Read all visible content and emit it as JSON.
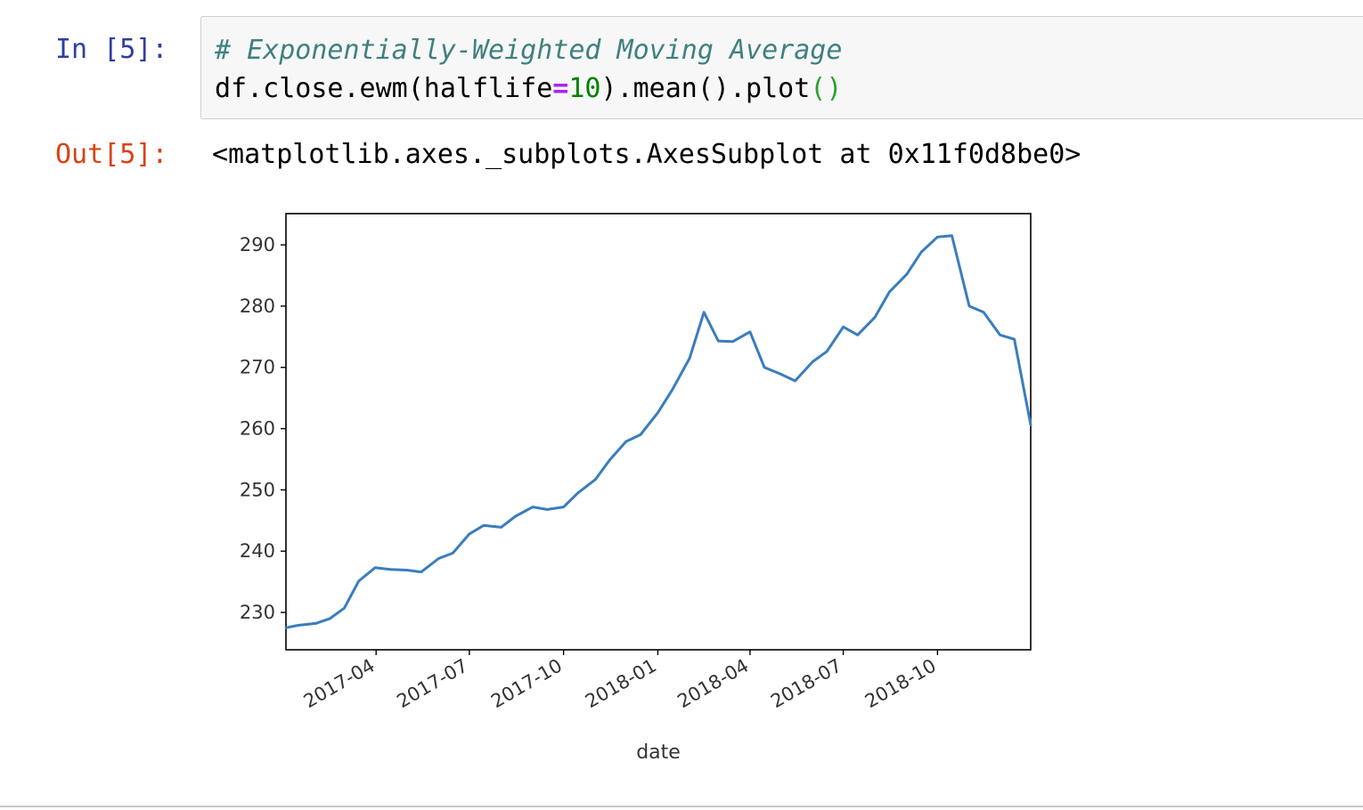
{
  "cell": {
    "in_prompt": "In [5]:",
    "out_prompt": "Out[5]:",
    "code": {
      "comment": "# Exponentially-Weighted Moving Average",
      "line2_a": "df.close.ewm(halflife",
      "line2_op": "=",
      "line2_num": "10",
      "line2_b": ").mean().plot",
      "line2_parens": "()"
    },
    "output_text": "<matplotlib.axes._subplots.AxesSubplot at 0x11f0d8be0>"
  },
  "colors": {
    "line": "#3a7dbd",
    "in_prompt": "#303f9f",
    "out_prompt": "#d84315",
    "comment": "#408080",
    "keyword_op": "#aa22ff",
    "number": "#008000"
  },
  "chart_data": {
    "type": "line",
    "xlabel": "date",
    "ylabel": "",
    "title": "",
    "x_ticks": [
      "2017-04",
      "2017-07",
      "2017-10",
      "2018-01",
      "2018-04",
      "2018-07",
      "2018-10"
    ],
    "y_ticks": [
      230,
      240,
      250,
      260,
      270,
      280,
      290
    ],
    "xlim": [
      "2017-01-03",
      "2018-12-31"
    ],
    "ylim": [
      223.9,
      295.1
    ],
    "grid": false,
    "series": [
      {
        "x": [
          "2017-01-03",
          "2017-01-15",
          "2017-02-01",
          "2017-02-15",
          "2017-03-01",
          "2017-03-15",
          "2017-03-31",
          "2017-04-15",
          "2017-05-01",
          "2017-05-15",
          "2017-06-01",
          "2017-06-15",
          "2017-07-01",
          "2017-07-15",
          "2017-08-01",
          "2017-08-15",
          "2017-09-01",
          "2017-09-15",
          "2017-10-01",
          "2017-10-15",
          "2017-11-01",
          "2017-11-15",
          "2017-12-01",
          "2017-12-15",
          "2018-01-01",
          "2018-01-15",
          "2018-02-01",
          "2018-02-15",
          "2018-03-01",
          "2018-03-15",
          "2018-04-01",
          "2018-04-15",
          "2018-05-01",
          "2018-05-15",
          "2018-06-01",
          "2018-06-15",
          "2018-07-01",
          "2018-07-15",
          "2018-08-01",
          "2018-08-15",
          "2018-09-01",
          "2018-09-15",
          "2018-10-01",
          "2018-10-15",
          "2018-11-01",
          "2018-11-15",
          "2018-12-01",
          "2018-12-15",
          "2018-12-31"
        ],
        "y": [
          227.5,
          227.9,
          228.2,
          229.0,
          230.7,
          235.1,
          237.3,
          237.0,
          236.9,
          236.6,
          238.8,
          239.7,
          242.8,
          244.2,
          243.9,
          245.7,
          247.2,
          246.8,
          247.2,
          249.5,
          251.7,
          254.9,
          257.9,
          259.0,
          262.6,
          266.3,
          271.5,
          279.0,
          274.3,
          274.2,
          275.8,
          270.0,
          268.9,
          267.8,
          270.9,
          272.6,
          276.6,
          275.3,
          278.2,
          282.3,
          285.2,
          288.8,
          291.3,
          291.5,
          280.0,
          279.0,
          275.3,
          274.6,
          260.6
        ]
      }
    ]
  }
}
